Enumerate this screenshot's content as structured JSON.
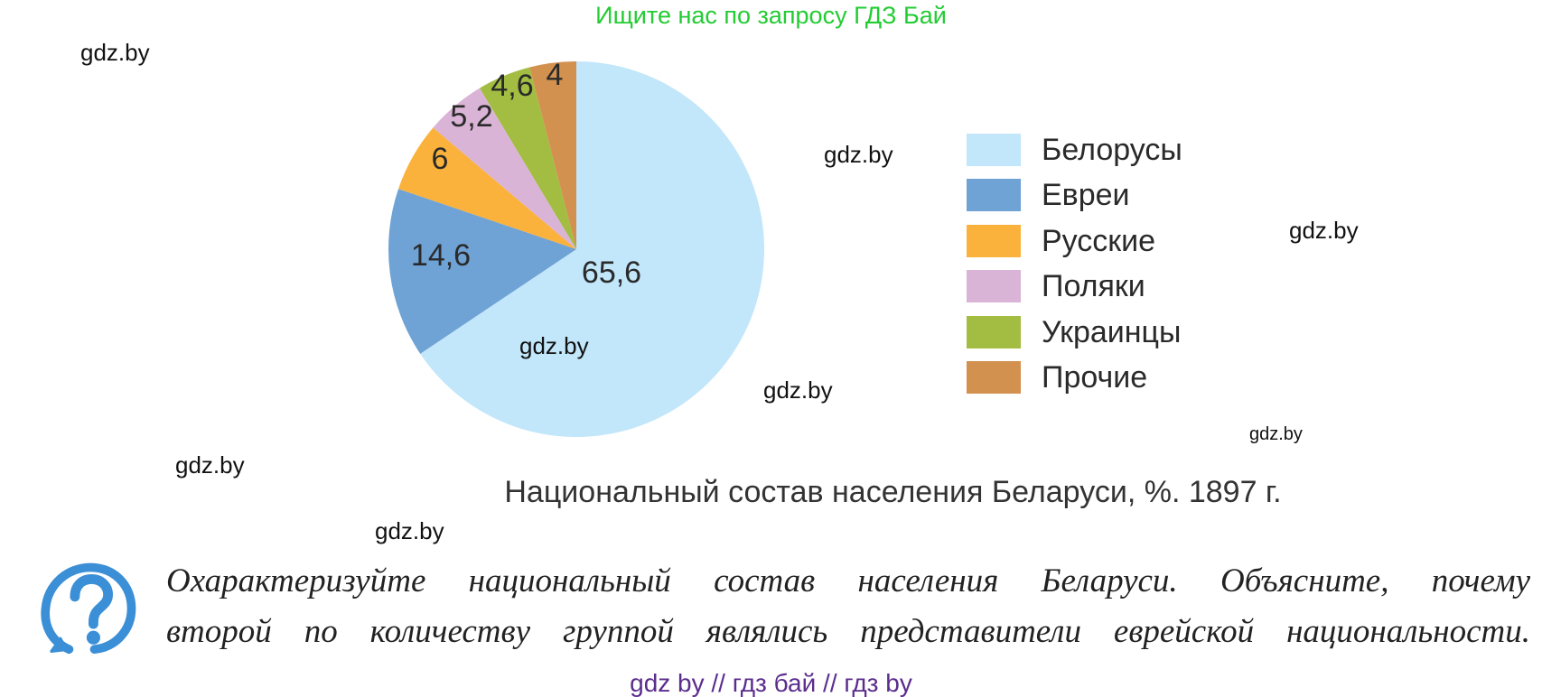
{
  "banner": "Ищите нас по запросу ГДЗ Бай",
  "watermark": "gdz.by",
  "chart_data": {
    "type": "pie",
    "title": "Национальный состав населения Беларуси, %. 1897 г.",
    "categories": [
      "Белорусы",
      "Евреи",
      "Русские",
      "Поляки",
      "Украинцы",
      "Прочие"
    ],
    "values": [
      65.6,
      14.6,
      6,
      5.2,
      4.6,
      4
    ],
    "value_labels": [
      "65,6",
      "14,6",
      "6",
      "5,2",
      "4,6",
      "4"
    ],
    "colors": [
      "#c2e6fa",
      "#6fa2d5",
      "#fbb23c",
      "#dab4d6",
      "#a2bd41",
      "#d39150"
    ],
    "legend": "right",
    "start": "12 o'clock",
    "direction": "clockwise"
  },
  "question": {
    "icon": "question-mark-icon",
    "lines": [
      "Охарактеризуйте национальный состав населения Беларуси. Объясните, почему",
      "второй по количеству группой являлись представители еврейской национальности."
    ]
  },
  "footer": "gdz by  //  гдз бай  //  гдз by"
}
